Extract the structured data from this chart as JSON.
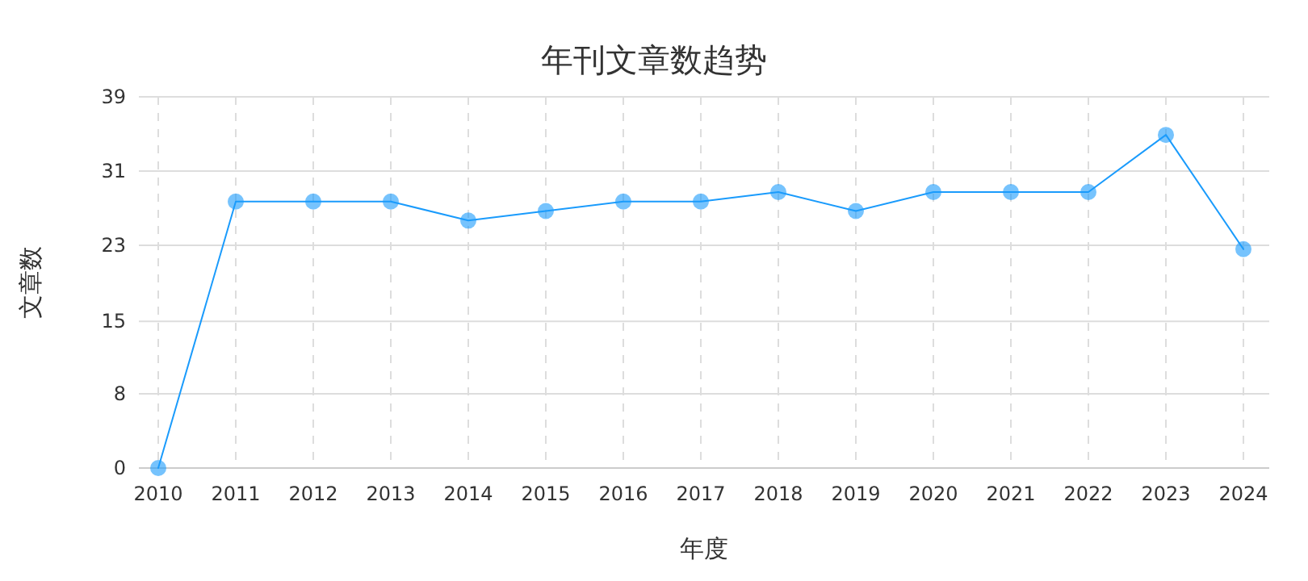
{
  "chart_data": {
    "type": "line",
    "title": "年刊文章数趋势",
    "xlabel": "年度",
    "ylabel": "文章数",
    "categories": [
      "2010",
      "2011",
      "2012",
      "2013",
      "2014",
      "2015",
      "2016",
      "2017",
      "2018",
      "2019",
      "2020",
      "2021",
      "2022",
      "2023",
      "2024"
    ],
    "series": [
      {
        "color": "#1a9bfc",
        "values": [
          0,
          28,
          28,
          28,
          26,
          27,
          28,
          28,
          29,
          27,
          29,
          29,
          29,
          35,
          23
        ]
      }
    ],
    "ylim": [
      0,
      39
    ],
    "yticks": [
      0,
      {
        "value": 7.8,
        "label": "8"
      },
      {
        "value": 15.4,
        "label": "15"
      },
      {
        "value": 23.4,
        "label": "23"
      },
      {
        "value": 31.2,
        "label": "31"
      },
      39
    ],
    "grid": true,
    "marker": "circle",
    "line_style": "solid"
  }
}
